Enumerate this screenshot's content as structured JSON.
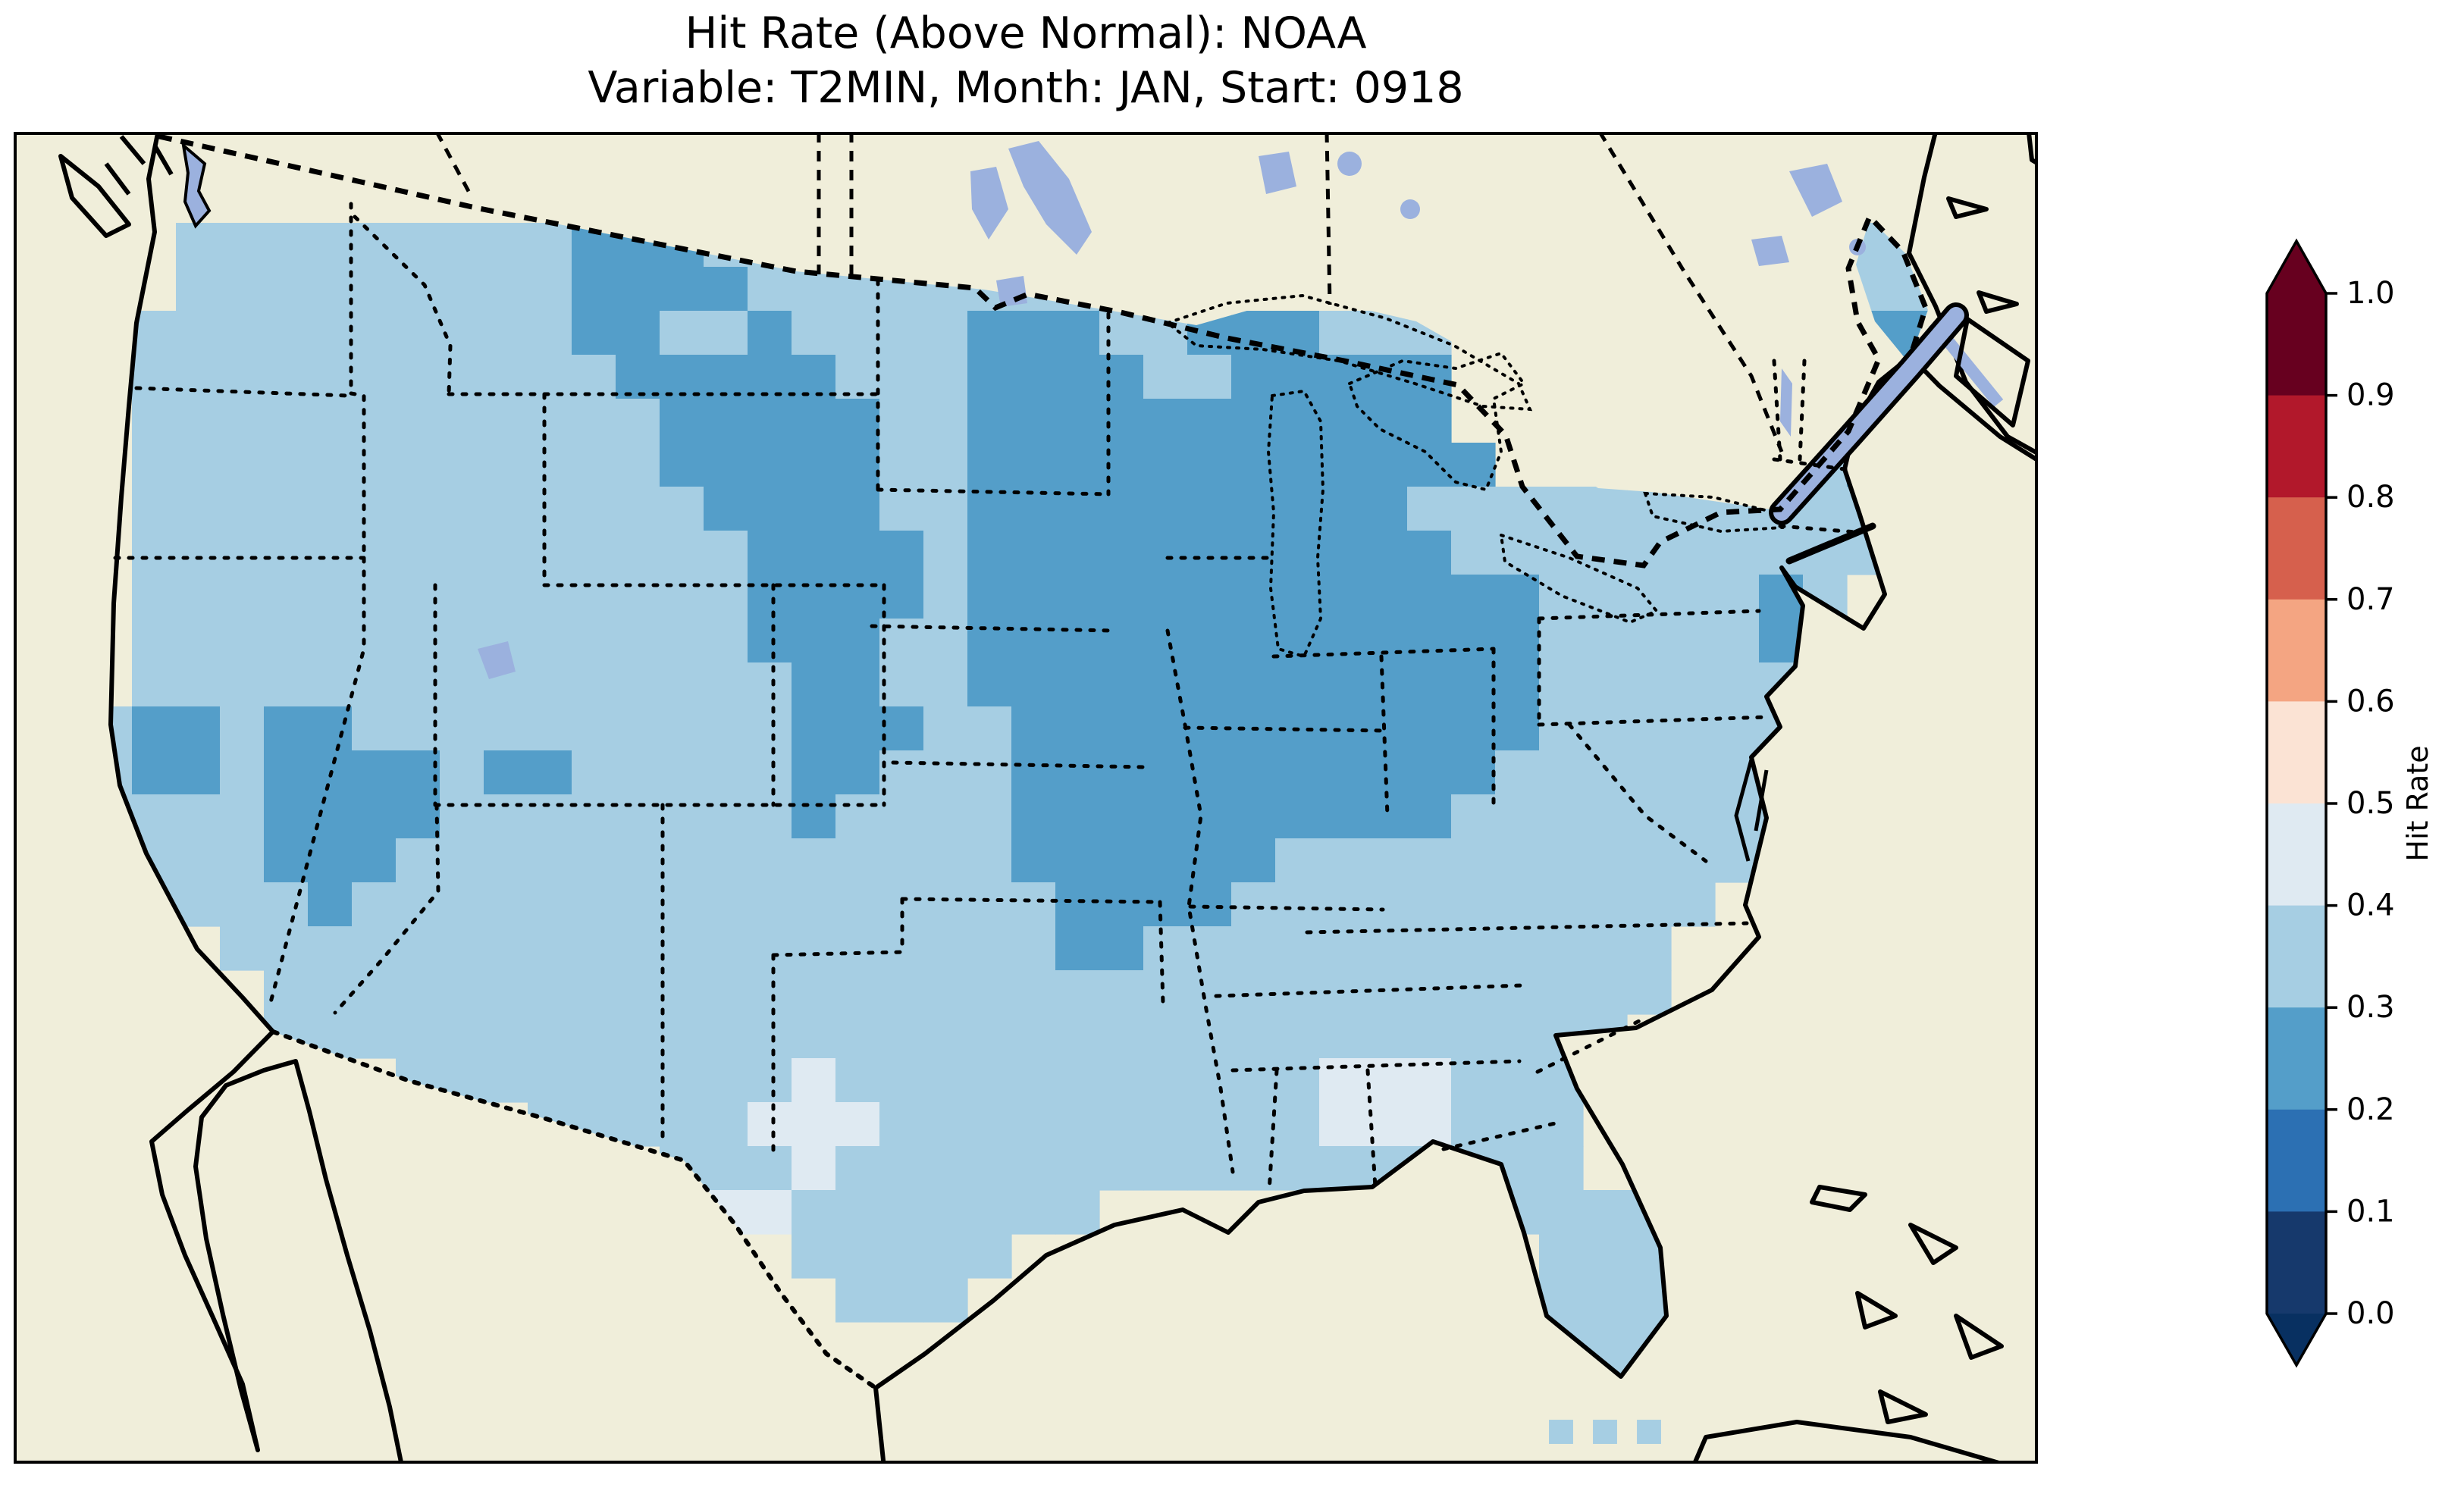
{
  "chart_data": {
    "type": "heatmap",
    "title": "Hit Rate (Above Normal): NOAA",
    "subtitle": "Variable: T2MIN, Month: JAN, Start: 0918",
    "legend_position": "right-colorbar",
    "colorbar": {
      "label": "Hit Rate",
      "orientation": "vertical",
      "extend": "both",
      "ticks": [
        "1.0",
        "0.9",
        "0.8",
        "0.7",
        "0.6",
        "0.5",
        "0.4",
        "0.3",
        "0.2",
        "0.1",
        "0.0"
      ],
      "boundaries": [
        0.0,
        0.1,
        0.2,
        0.3,
        0.4,
        0.5,
        0.6,
        0.7,
        0.8,
        0.9,
        1.0
      ],
      "segment_colors_top_to_bottom": [
        "#67001f",
        "#b2182b",
        "#d6604d",
        "#f4a582",
        "#fbe3d4",
        "#dfeaf2",
        "#a6cee3",
        "#549ec9",
        "#2c70b3",
        "#16396c"
      ],
      "extend_over_color": "#67001f",
      "extend_under_color": "#083061"
    },
    "map": {
      "region": "Contiguous United States with surrounding Canada, Mexico, oceans",
      "colors": {
        "ocean": "#8da6d8",
        "lake": "#9bb1de",
        "land_no_data": "#f0eeda",
        "coastline": "#000000"
      },
      "grid": {
        "origin": [
          40,
          120
        ],
        "cell": 58,
        "cols": 44,
        "rows": 28,
        "bands": {
          "a": {
            "range": "0.3-0.4",
            "value": 0.35,
            "color": "#a6cee3"
          },
          "b": {
            "range": "0.2-0.3",
            "value": 0.25,
            "color": "#549ec9"
          },
          "c": {
            "range": "0.4-0.5",
            "value": 0.45,
            "color": "#dfeaf2"
          }
        },
        "rows_encoded": [
          "...aaaaaaaaabbbaaaaaaaaaa................aa.",
          "...aaaaaaaaabbbbaaaaaaaaaaa.............aaa.",
          "..aaaaaaaaaabbaabaaaabbbaabbbaaa........abb.",
          "..aaaaaaaaaaabbbbbaaabbbbaabbbbb......aabbb.",
          "..aaaaaaaaaaaabbbbbaabbbbbbbbbbb....abbaaba.",
          "..aaaaaaaaaaaabbbbbaabbbbbbbbbbbb...abbaaba.",
          "..aaaaaaaaaaaaabbbbaabbbbbbbbbbaaaaaaaaaaaa.",
          "..aaaaaaaaaaaaaabbbbabbbbbbbbbbbaaaaaaaaaa..",
          "..aaaaaaaaaaaaaabbbbabbbbbbbbbbbbbaaaaaba...",
          "..aaaaaaaaaaaaaabbbaabbbbbbbbbbbbbaaaaab....",
          "..aaaaaaaaaaaaaaabbaabbbbbbbbbbbbbaaaaaa....",
          ".abbabbaaaaaaaaaabbbaabbbbbbbbbbbbaaaaaa....",
          ".abbabbbbabbaaaaabbaaabbbbbbbbbbbaaaaaaa....",
          ".aaaabbbbaaaaaaaabaaaabbbbbbbbbbaaaaaaaa....",
          "..aaabbbaaaaaaaaaaaaaabbbbbbaaaaaaaaaaa.....",
          "..aaaabaaaaaaaaaaaaaaaabbbbaaaaaaaaaaa......",
          "....aaaaaaaaaaaaaaaaaaabbaaaaaaaaaaaa.......",
          ".....aaaaaaaaaaaaaaaaaaaaaaaaaaaaaaaa.......",
          ".....aaaaaaaaaaaaaaaaaaaaaaaaaaaaaaa........",
          "........aaaaaaaaacaaaaaaaaaaacccaaaa........",
          "...........aaaaacccaaaaaaaaaacccaaa.........",
          "..............aaacaaaaaaaaaaaaaaaaa.........",
          "...............ccaaaaaaa.........aaaa.......",
          ".................aaaaa............aaa.......",
          "..................aaa.............aaa.......",
          "..................................aaa.......",
          "...................................aa.......",
          "............................................"
        ],
        "extra_cells": [
          {
            "col": 34,
            "row": 27,
            "band": "a",
            "size": 0.55
          },
          {
            "col": 35,
            "row": 27,
            "band": "a",
            "size": 0.55
          },
          {
            "col": 36,
            "row": 27,
            "band": "a",
            "size": 0.55
          }
        ]
      }
    }
  }
}
